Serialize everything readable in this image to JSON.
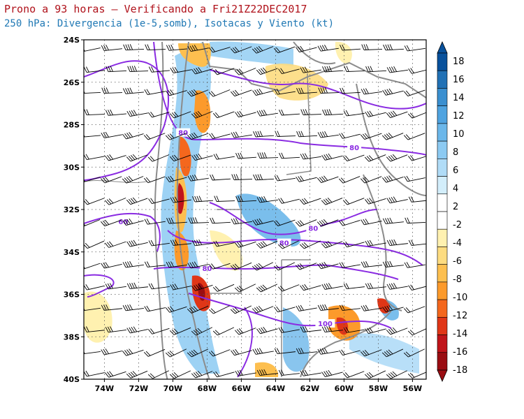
{
  "header": {
    "title": "Prono a 93 horas — Verificando a Fri21Z22DEC2017",
    "subtitle": "250 hPa: Divergencia (1e-5,somb), Isotacas y Viento (kt)"
  },
  "map": {
    "lat_labels": [
      "24S",
      "26S",
      "28S",
      "30S",
      "32S",
      "34S",
      "36S",
      "38S",
      "40S"
    ],
    "lon_labels": [
      "74W",
      "72W",
      "70W",
      "68W",
      "66W",
      "64W",
      "62W",
      "60W",
      "58W",
      "56W"
    ],
    "lat_range": [
      -40,
      -24
    ],
    "lon_range": [
      -75.2,
      -55.2
    ],
    "isotach_color": "#8a2be2",
    "isotach_labels": [
      {
        "value": "80",
        "lon": -69.4,
        "lat": -28.4
      },
      {
        "value": "60",
        "lon": -72.9,
        "lat": -32.6
      },
      {
        "value": "80",
        "lon": -61.8,
        "lat": -32.9
      },
      {
        "value": "80",
        "lon": -63.5,
        "lat": -33.6
      },
      {
        "value": "80",
        "lon": -68.0,
        "lat": -34.8
      },
      {
        "value": "80",
        "lon": -59.4,
        "lat": -29.1
      },
      {
        "value": "100",
        "lon": -61.1,
        "lat": -37.4
      }
    ]
  },
  "colorbar": {
    "labels": [
      "18",
      "16",
      "14",
      "12",
      "10",
      "8",
      "6",
      "4",
      "2",
      "-2",
      "-4",
      "-6",
      "-8",
      "-10",
      "-12",
      "-14",
      "-16",
      "-18"
    ],
    "colors": [
      "#08519c",
      "#2171b5",
      "#3a8fd0",
      "#4fa3e0",
      "#6bb7ea",
      "#8ccaf2",
      "#b0dcf7",
      "#d3eefb",
      "#ffffff",
      "#ffffff",
      "#fff1b0",
      "#fddc80",
      "#fdbf4f",
      "#fc9a2b",
      "#f4671d",
      "#e03617",
      "#c0141a",
      "#9a0d12"
    ]
  }
}
